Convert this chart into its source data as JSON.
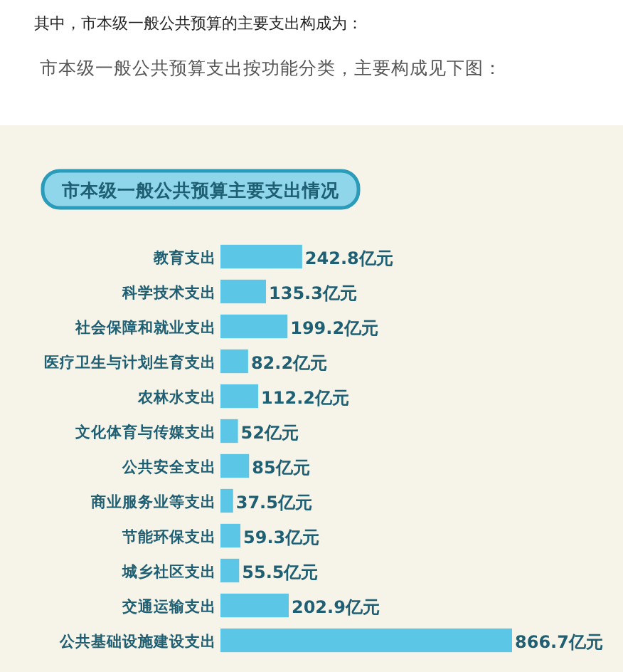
{
  "chart_data": {
    "type": "bar",
    "orientation": "horizontal",
    "title": "市本级一般公共预算主要支出情况",
    "annotations": [
      "其中，市本级一般公共预算的主要支出构成为：",
      "市本级一般公共预算支出按功能分类，主要构成见下图："
    ],
    "categories": [
      "教育支出",
      "科学技术支出",
      "社会保障和就业支出",
      "医疗卫生与计划生育支出",
      "农林水支出",
      "文化体育与传媒支出",
      "公共安全支出",
      "商业服务业等支出",
      "节能环保支出",
      "城乡社区支出",
      "交通运输支出",
      "公共基础设施建设支出"
    ],
    "values": [
      242.8,
      135.3,
      199.2,
      82.2,
      112.2,
      52,
      85,
      37.5,
      59.3,
      55.5,
      202.9,
      866.7
    ],
    "value_labels": [
      "242.8亿元",
      "135.3亿元",
      "199.2亿元",
      "82.2亿元",
      "112.2亿元",
      "52亿元",
      "85亿元",
      "37.5亿元",
      "59.3亿元",
      "55.5亿元",
      "202.9亿元",
      "866.7亿元"
    ],
    "color": "#5cc6e6"
  }
}
